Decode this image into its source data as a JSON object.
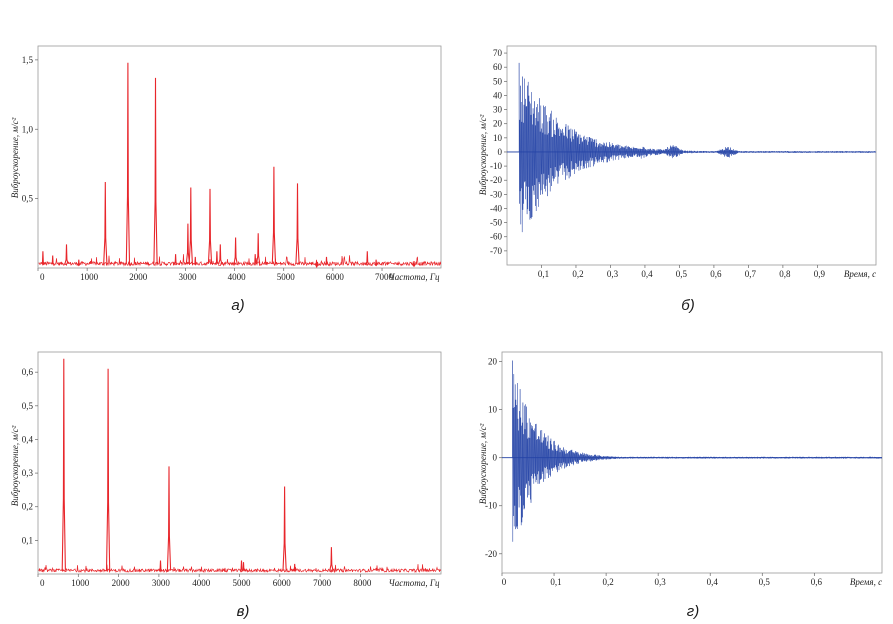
{
  "chart_data": [
    {
      "id": "a",
      "type": "line",
      "caption": "а)",
      "xlabel": "Частота, Гц",
      "ylabel": "Виброускорение, м/с²",
      "xlim": [
        0,
        8200
      ],
      "ylim": [
        0,
        1.6
      ],
      "xticks": [
        0,
        1000,
        2000,
        3000,
        4000,
        5000,
        6000,
        7000
      ],
      "xtick_labels": [
        "0",
        "1000",
        "2000",
        "3000",
        "4000",
        "5000",
        "6000",
        "7000"
      ],
      "yticks": [
        0.5,
        1.0,
        1.5
      ],
      "ytick_labels": [
        "0,5",
        "1,0",
        "1,5"
      ],
      "color": "#e8262b",
      "baseline": 0.03,
      "peaks": [
        [
          100,
          0.12
        ],
        [
          300,
          0.09
        ],
        [
          580,
          0.17
        ],
        [
          830,
          0.06
        ],
        [
          1370,
          0.62
        ],
        [
          1830,
          1.48
        ],
        [
          2390,
          1.37
        ],
        [
          2800,
          0.1
        ],
        [
          3050,
          0.32
        ],
        [
          3110,
          0.58
        ],
        [
          3200,
          0.08
        ],
        [
          3500,
          0.57
        ],
        [
          3640,
          0.12
        ],
        [
          3710,
          0.17
        ],
        [
          4020,
          0.22
        ],
        [
          4420,
          0.1
        ],
        [
          4480,
          0.25
        ],
        [
          4800,
          0.73
        ],
        [
          5280,
          0.61
        ],
        [
          5670,
          0.04
        ],
        [
          5870,
          0.08
        ],
        [
          6700,
          0.12
        ],
        [
          6880,
          0.06
        ],
        [
          7650,
          0.05
        ]
      ]
    },
    {
      "id": "b",
      "type": "line",
      "caption": "б)",
      "xlabel": "Время, с",
      "ylabel": "Виброускорение, м/с²",
      "xlim": [
        0,
        1.07
      ],
      "ylim": [
        -80,
        75
      ],
      "xticks": [
        0.1,
        0.2,
        0.3,
        0.4,
        0.5,
        0.6,
        0.7,
        0.8,
        0.9
      ],
      "xtick_labels": [
        "0,1",
        "0,2",
        "0,3",
        "0,4",
        "0,5",
        "0,6",
        "0,7",
        "0,8",
        "0,9"
      ],
      "yticks": [
        70,
        60,
        50,
        40,
        30,
        20,
        10,
        0,
        -10,
        -20,
        -30,
        -40,
        -50,
        -60,
        -70
      ],
      "ytick_labels": [
        "70",
        "60",
        "50",
        "40",
        "30",
        "20",
        "10",
        "0",
        "-10",
        "-20",
        "-30",
        "-40",
        "-50",
        "-60",
        "-70"
      ],
      "color": "#2443a6",
      "start": 0.035,
      "amplitude": 65,
      "decay": 8.5,
      "bursts": [
        [
          0.28,
          8
        ],
        [
          0.39,
          5
        ],
        [
          0.48,
          5
        ],
        [
          0.64,
          4
        ]
      ]
    },
    {
      "id": "v",
      "type": "line",
      "caption": "в)",
      "xlabel": "Частота, Гц",
      "ylabel": "Виброускорение, м/с²",
      "xlim": [
        0,
        10000
      ],
      "ylim": [
        0,
        0.66
      ],
      "xticks": [
        0,
        1000,
        2000,
        3000,
        4000,
        5000,
        6000,
        7000,
        8000
      ],
      "xtick_labels": [
        "0",
        "1000",
        "2000",
        "3000",
        "4000",
        "5000",
        "6000",
        "7000",
        "8000"
      ],
      "yticks": [
        0.1,
        0.2,
        0.3,
        0.4,
        0.5,
        0.6
      ],
      "ytick_labels": [
        "0,1",
        "0,2",
        "0,3",
        "0,4",
        "0,5",
        "0,6"
      ],
      "color": "#e8262b",
      "baseline": 0.01,
      "peaks": [
        [
          640,
          0.64
        ],
        [
          1740,
          0.61
        ],
        [
          3040,
          0.04
        ],
        [
          3250,
          0.32
        ],
        [
          5050,
          0.04
        ],
        [
          5100,
          0.035
        ],
        [
          6120,
          0.26
        ],
        [
          6370,
          0.03
        ],
        [
          7280,
          0.08
        ]
      ]
    },
    {
      "id": "g",
      "type": "line",
      "caption": "г)",
      "xlabel": "Время, с",
      "ylabel": "Виброускорение, м/с²",
      "xlim": [
        0,
        0.73
      ],
      "ylim": [
        -24,
        22
      ],
      "xticks": [
        0,
        0.1,
        0.2,
        0.3,
        0.4,
        0.5,
        0.6
      ],
      "xtick_labels": [
        "0",
        "0,1",
        "0,2",
        "0,3",
        "0,4",
        "0,5",
        "0,6"
      ],
      "yticks": [
        20,
        10,
        0,
        -10,
        -20
      ],
      "ytick_labels": [
        "20",
        "10",
        "0",
        "-10",
        "-20"
      ],
      "color": "#2443a6",
      "start": 0.02,
      "amplitude": 21,
      "decay": 22,
      "bursts": []
    }
  ]
}
